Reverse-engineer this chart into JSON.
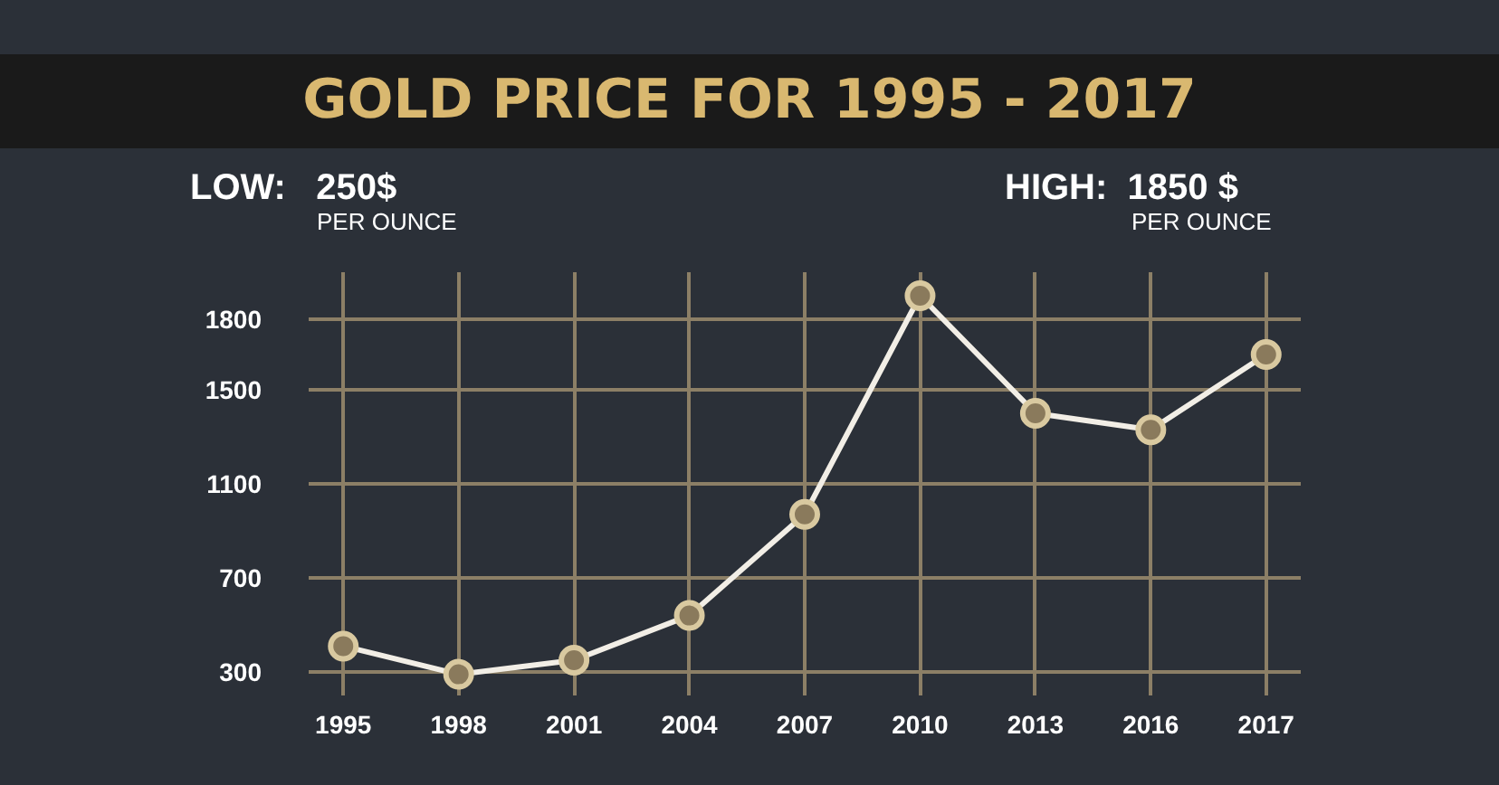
{
  "chart_data": {
    "type": "line",
    "title": "GOLD PRICE FOR 1995 - 2017",
    "annotations": [
      "LOW:   250$",
      "PER OUNCE",
      "HIGH:  1850 $",
      "PER OUNCE"
    ],
    "categories": [
      "1995",
      "1998",
      "2001",
      "2004",
      "2007",
      "2010",
      "2013",
      "2016",
      "2017"
    ],
    "series": [
      {
        "color": "#f2eee6",
        "values": [
          410,
          290,
          350,
          540,
          970,
          1900,
          1400,
          1330,
          1650
        ]
      }
    ],
    "ylim": [
      200,
      2000
    ],
    "yticks": [
      300,
      700,
      1100,
      1500,
      1800
    ],
    "grid": true,
    "marker": "circle",
    "line_style": "solid"
  }
}
